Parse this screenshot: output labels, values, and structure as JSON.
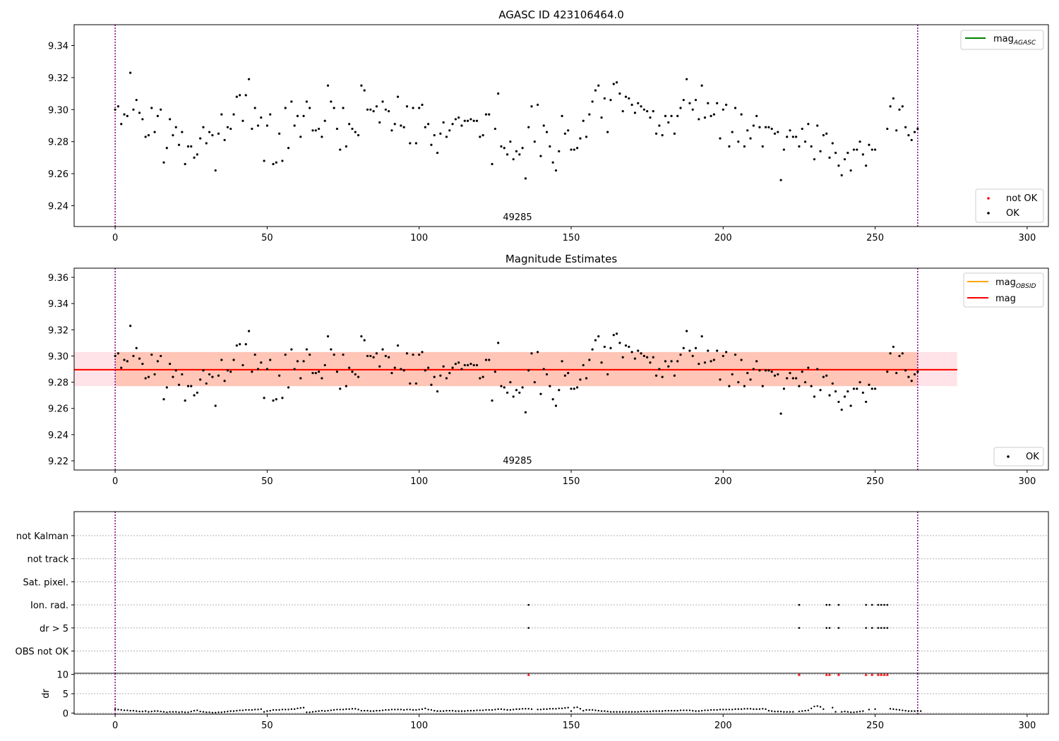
{
  "chart_data": [
    {
      "type": "scatter",
      "title": "AGASC ID 423106464.0",
      "annotation": "49285",
      "xlim": [
        -13.5,
        307
      ],
      "ylim": [
        9.227,
        9.353
      ],
      "x_ticks": [
        0,
        50,
        100,
        150,
        200,
        250,
        300
      ],
      "y_ticks": [
        9.24,
        9.26,
        9.28,
        9.3,
        9.32,
        9.34
      ],
      "obs_boundaries": [
        0,
        264
      ],
      "lines": [
        {
          "name": "mag",
          "subscript": "AGASC",
          "color": "#008000"
        }
      ],
      "point_legend": [
        {
          "name": "not OK",
          "color": "#ff0000"
        },
        {
          "name": "OK",
          "color": "#000000"
        }
      ],
      "series": [
        {
          "name": "OK",
          "color": "#000000",
          "x": [
            0,
            1,
            2,
            3,
            4,
            5,
            6,
            7,
            8,
            9,
            10,
            11,
            12,
            13,
            14,
            15,
            16,
            17,
            18,
            19,
            20,
            21,
            22,
            23,
            24,
            25,
            26,
            27,
            28,
            29,
            30,
            31,
            32,
            33,
            34,
            35,
            36,
            37,
            38,
            39,
            40,
            41,
            42,
            43,
            44,
            45,
            46,
            47,
            48,
            49,
            50,
            51,
            52,
            53,
            54,
            55,
            56,
            57,
            58,
            59,
            60,
            61,
            62,
            63,
            64,
            65,
            66,
            67,
            68,
            69,
            70,
            71,
            72,
            73,
            74,
            75,
            76,
            77,
            78,
            79,
            80,
            81,
            82,
            83,
            84,
            85,
            86,
            87,
            88,
            89,
            90,
            91,
            92,
            93,
            94,
            95,
            96,
            97,
            98,
            99,
            100,
            101,
            102,
            103,
            104,
            105,
            106,
            107,
            108,
            109,
            110,
            111,
            112,
            113,
            114,
            115,
            116,
            117,
            118,
            119,
            120,
            121,
            122,
            123,
            124,
            125,
            126,
            127,
            128,
            129,
            130,
            131,
            132,
            133,
            134,
            135,
            136,
            137,
            138,
            139,
            140,
            141,
            142,
            143,
            144,
            145,
            146,
            147,
            148,
            149,
            150,
            151,
            152,
            153,
            154,
            155,
            156,
            157,
            158,
            159,
            160,
            161,
            162,
            163,
            164,
            165,
            166,
            167,
            168,
            169,
            170,
            171,
            172,
            173,
            174,
            175,
            176,
            177,
            178,
            179,
            180,
            181,
            182,
            183,
            184,
            185,
            186,
            187,
            188,
            189,
            190,
            191,
            192,
            193,
            194,
            195,
            196,
            197,
            198,
            199,
            200,
            201,
            202,
            203,
            204,
            205,
            206,
            207,
            208,
            209,
            210,
            211,
            212,
            213,
            214,
            215,
            216,
            217,
            218,
            219,
            220,
            221,
            222,
            223,
            224,
            225,
            226,
            227,
            228,
            229,
            230,
            231,
            232,
            233,
            234,
            235,
            236,
            237,
            238,
            239,
            240,
            241,
            242,
            243,
            244,
            245,
            246,
            247,
            248,
            249,
            250,
            254,
            255,
            256,
            257,
            258,
            259,
            260,
            261,
            262,
            263,
            264
          ],
          "y": [
            9.3,
            9.302,
            9.291,
            9.297,
            9.296,
            9.323,
            9.3,
            9.306,
            9.298,
            9.294,
            9.283,
            9.284,
            9.301,
            9.286,
            9.296,
            9.3,
            9.267,
            9.276,
            9.294,
            9.284,
            9.289,
            9.278,
            9.286,
            9.266,
            9.277,
            9.277,
            9.27,
            9.272,
            9.282,
            9.289,
            9.279,
            9.286,
            9.284,
            9.262,
            9.285,
            9.297,
            9.281,
            9.289,
            9.288,
            9.297,
            9.308,
            9.309,
            9.293,
            9.309,
            9.319,
            9.288,
            9.301,
            9.29,
            9.295,
            9.268,
            9.29,
            9.297,
            9.266,
            9.267,
            9.285,
            9.268,
            9.301,
            9.276,
            9.305,
            9.29,
            9.296,
            9.283,
            9.296,
            9.305,
            9.301,
            9.287,
            9.287,
            9.288,
            9.283,
            9.293,
            9.315,
            9.305,
            9.301,
            9.288,
            9.275,
            9.301,
            9.277,
            9.291,
            9.288,
            9.286,
            9.284,
            9.315,
            9.312,
            9.3,
            9.3,
            9.299,
            9.302,
            9.292,
            9.305,
            9.3,
            9.299,
            9.287,
            9.291,
            9.308,
            9.29,
            9.289,
            9.302,
            9.279,
            9.301,
            9.279,
            9.301,
            9.303,
            9.289,
            9.291,
            9.278,
            9.284,
            9.273,
            9.285,
            9.292,
            9.283,
            9.287,
            9.291,
            9.294,
            9.295,
            9.29,
            9.293,
            9.293,
            9.294,
            9.293,
            9.293,
            9.283,
            9.284,
            9.297,
            9.297,
            9.266,
            9.288,
            9.31,
            9.277,
            9.276,
            9.272,
            9.28,
            9.269,
            9.274,
            9.272,
            9.276,
            9.257,
            9.289,
            9.302,
            9.28,
            9.303,
            9.271,
            9.29,
            9.286,
            9.277,
            9.267,
            9.262,
            9.274,
            9.296,
            9.285,
            9.287,
            9.275,
            9.275,
            9.276,
            9.282,
            9.293,
            9.283,
            9.297,
            9.305,
            9.312,
            9.315,
            9.295,
            9.307,
            9.286,
            9.306,
            9.316,
            9.317,
            9.31,
            9.299,
            9.308,
            9.307,
            9.303,
            9.298,
            9.304,
            9.302,
            9.3,
            9.299,
            9.295,
            9.299,
            9.285,
            9.29,
            9.284,
            9.296,
            9.292,
            9.296,
            9.285,
            9.296,
            9.301,
            9.306,
            9.319,
            9.304,
            9.3,
            9.306,
            9.294,
            9.315,
            9.295,
            9.304,
            9.296,
            9.297,
            9.304,
            9.282,
            9.3,
            9.303,
            9.277,
            9.286,
            9.301,
            9.28,
            9.297,
            9.277,
            9.287,
            9.282,
            9.29,
            9.296,
            9.289,
            9.277,
            9.289,
            9.289,
            9.288,
            9.285,
            9.286,
            9.256,
            9.275,
            9.283,
            9.287,
            9.283,
            9.283,
            9.277,
            9.288,
            9.28,
            9.291,
            9.277,
            9.269,
            9.29,
            9.274,
            9.284,
            9.285,
            9.27,
            9.279,
            9.273,
            9.265,
            9.259,
            9.269,
            9.273,
            9.262,
            9.275,
            9.275,
            9.28,
            9.272,
            9.265,
            9.278,
            9.275,
            9.275,
            9.288,
            9.302,
            9.307,
            9.287,
            9.3,
            9.302,
            9.289,
            9.284,
            9.281,
            9.286,
            9.288
          ]
        }
      ]
    },
    {
      "type": "scatter",
      "title": "Magnitude Estimates",
      "annotation": "49285",
      "xlim": [
        -13.5,
        307
      ],
      "ylim": [
        9.213,
        9.367
      ],
      "x_ticks": [
        0,
        50,
        100,
        150,
        200,
        250,
        300
      ],
      "y_ticks": [
        9.22,
        9.24,
        9.26,
        9.28,
        9.3,
        9.32,
        9.34,
        9.36
      ],
      "obs_boundaries": [
        0,
        264
      ],
      "lines": [
        {
          "name": "mag",
          "subscript": "OBSID",
          "color": "#ffa500",
          "value": 9.2895,
          "x_range": [
            -13.5,
            277
          ]
        },
        {
          "name": "mag",
          "color": "#ff0000",
          "value": 9.2895,
          "x_range": [
            -13.5,
            277
          ]
        }
      ],
      "bands": [
        {
          "color": "#ffc0cb",
          "y_range": [
            9.277,
            9.303
          ],
          "x_range": [
            -13.5,
            277
          ]
        },
        {
          "color": "#ffa07a",
          "y_range": [
            9.277,
            9.303
          ],
          "x_range": [
            0,
            264
          ]
        }
      ],
      "point_legend": [
        {
          "name": "OK",
          "color": "#000000"
        }
      ],
      "series": [
        {
          "name": "OK",
          "color": "#000000",
          "same_as": "panel1"
        }
      ]
    },
    {
      "type": "scatter",
      "title": "",
      "xlim": [
        -13.5,
        307
      ],
      "x_ticks": [
        0,
        50,
        100,
        150,
        200,
        250,
        300
      ],
      "obs_boundaries": [
        0,
        264
      ],
      "flag_categories": [
        "not Kalman",
        "not track",
        "Sat. pixel.",
        "Ion. rad.",
        "dr > 5",
        "OBS not OK"
      ],
      "flags": [
        {
          "category": "Ion. rad.",
          "x": [
            136,
            225,
            234,
            235,
            238,
            247,
            249,
            251,
            252,
            253,
            254
          ]
        },
        {
          "category": "dr > 5",
          "x": [
            136,
            225,
            234,
            235,
            238,
            247,
            249,
            251,
            252,
            253,
            254
          ]
        }
      ],
      "dr_axis": {
        "ylabel": "dr",
        "ylim": [
          -0.3,
          10.3
        ],
        "y_ticks": [
          0,
          5,
          10
        ]
      },
      "dr_clipped": {
        "color": "#ff0000",
        "value": 10,
        "x": [
          136,
          225,
          234,
          235,
          238,
          247,
          249,
          251,
          252,
          253,
          254
        ]
      },
      "dr_values": [
        1.0,
        0.9,
        0.8,
        0.7,
        0.7,
        0.6,
        0.6,
        0.5,
        0.4,
        0.4,
        0.5,
        0.3,
        0.4,
        0.5,
        0.5,
        0.4,
        0.3,
        0.2,
        0.3,
        0.3,
        0.3,
        0.2,
        0.3,
        0.2,
        0.2,
        0.4,
        0.6,
        0.7,
        0.4,
        0.3,
        0.2,
        0.2,
        0.1,
        0.1,
        0.2,
        0.2,
        0.3,
        0.4,
        0.5,
        0.5,
        0.6,
        0.7,
        0.7,
        0.8,
        0.8,
        0.8,
        0.9,
        0.9,
        1.0,
        0.3,
        0.5,
        0.6,
        0.8,
        0.8,
        0.8,
        0.9,
        0.9,
        0.9,
        1.0,
        1.0,
        1.2,
        1.3,
        1.4,
        0.2,
        0.2,
        0.3,
        0.4,
        0.5,
        0.6,
        0.5,
        0.6,
        0.7,
        0.8,
        0.9,
        0.9,
        0.9,
        1.0,
        1.0,
        1.1,
        1.1,
        0.9,
        0.6,
        0.6,
        0.6,
        0.5,
        0.5,
        0.6,
        0.6,
        0.7,
        0.8,
        0.8,
        0.9,
        0.9,
        0.9,
        0.9,
        0.8,
        0.9,
        0.9,
        0.8,
        0.8,
        0.9,
        1.0,
        1.2,
        0.9,
        0.8,
        0.6,
        0.5,
        0.5,
        0.5,
        0.6,
        0.6,
        0.6,
        0.5,
        0.5,
        0.5,
        0.5,
        0.6,
        0.6,
        0.6,
        0.7,
        0.7,
        0.7,
        0.8,
        0.8,
        0.8,
        0.9,
        1.0,
        1.0,
        0.9,
        0.8,
        0.8,
        0.9,
        1.0,
        1.0,
        1.1,
        1.1,
        1.1,
        1.0,
        null,
        0.9,
        0.9,
        1.0,
        1.0,
        1.1,
        1.1,
        1.1,
        1.2,
        1.2,
        1.3,
        1.4,
        0.5,
        1.4,
        1.5,
        1.1,
        0.6,
        0.8,
        0.8,
        0.8,
        0.7,
        0.6,
        0.5,
        0.5,
        0.4,
        0.3,
        0.3,
        0.3,
        0.3,
        0.3,
        0.3,
        0.3,
        0.3,
        0.3,
        0.3,
        0.4,
        0.4,
        0.4,
        0.4,
        0.5,
        0.5,
        0.5,
        0.5,
        0.6,
        0.6,
        0.6,
        0.6,
        0.6,
        0.7,
        0.7,
        0.7,
        0.7,
        0.6,
        0.5,
        0.5,
        0.6,
        0.7,
        0.7,
        0.8,
        0.8,
        0.8,
        0.9,
        0.9,
        0.9,
        0.9,
        0.9,
        1.0,
        1.0,
        1.0,
        1.1,
        1.1,
        1.1,
        1.0,
        1.0,
        1.0,
        1.1,
        1.0,
        0.6,
        0.5,
        0.4,
        0.4,
        0.4,
        0.3,
        0.3,
        0.3,
        0.3,
        null,
        0.4,
        0.5,
        0.6,
        0.7,
        1.2,
        1.7,
        1.8,
        1.6,
        1.0,
        null,
        null,
        1.4,
        0.3,
        null,
        0.3,
        0.4,
        0.3,
        0.2,
        0.2,
        0.3,
        0.4,
        0.5,
        null,
        0.9,
        null,
        1.0,
        null,
        null,
        null,
        null,
        1.1,
        1.0,
        0.9,
        0.8,
        0.7,
        0.6,
        0.5,
        0.5,
        0.5,
        0.5,
        0.5
      ]
    }
  ]
}
